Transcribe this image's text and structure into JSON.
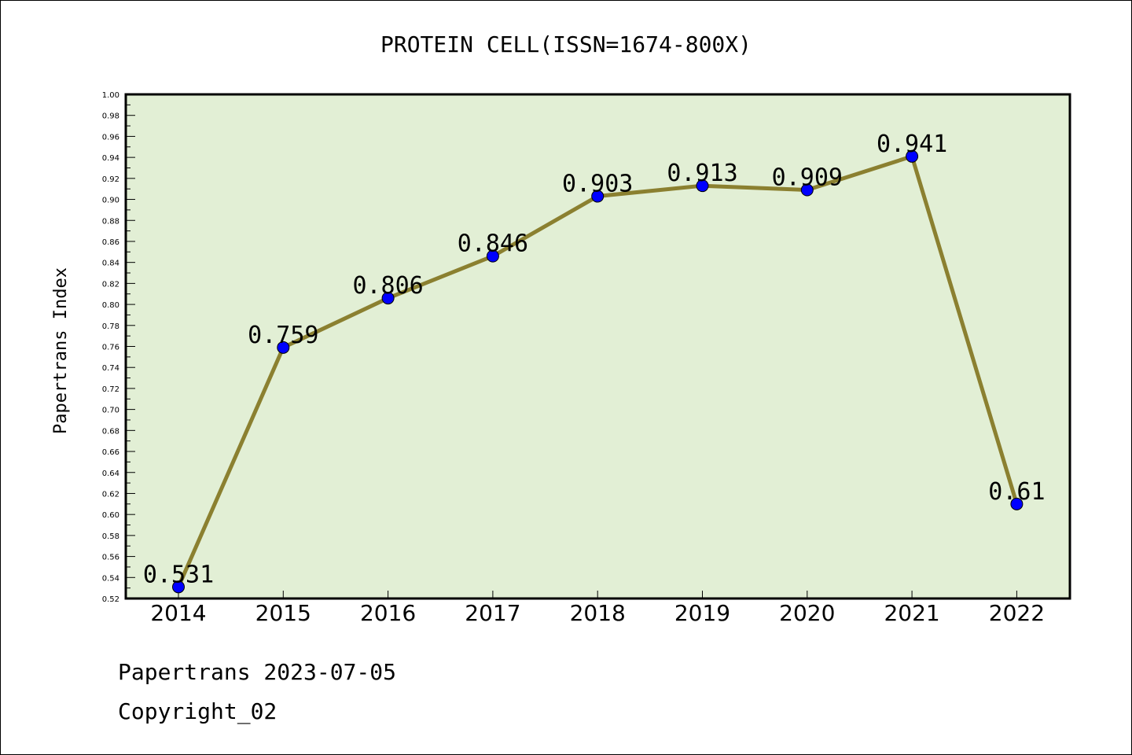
{
  "chart_data": {
    "type": "line",
    "title": "PROTEIN CELL(ISSN=1674-800X)",
    "ylabel": "Papertrans Index",
    "xlabel": "",
    "categories": [
      "2014",
      "2015",
      "2016",
      "2017",
      "2018",
      "2019",
      "2020",
      "2021",
      "2022"
    ],
    "values": [
      0.531,
      0.759,
      0.806,
      0.846,
      0.903,
      0.913,
      0.909,
      0.941,
      0.61
    ],
    "value_labels": [
      "0.531",
      "0.759",
      "0.806",
      "0.846",
      "0.903",
      "0.913",
      "0.909",
      "0.941",
      "0.61"
    ],
    "ylim": [
      0.52,
      1.0
    ],
    "ytick_labels": [
      "0.52",
      "0.54",
      "0.56",
      "0.58",
      "0.60",
      "0.62",
      "0.64",
      "0.66",
      "0.68",
      "0.70",
      "0.72",
      "0.74",
      "0.76",
      "0.78",
      "0.80",
      "0.82",
      "0.84",
      "0.86",
      "0.88",
      "0.90",
      "0.92",
      "0.94",
      "0.96",
      "0.98",
      "1.00"
    ],
    "grid": false,
    "legend": "none",
    "colors": {
      "plot_background": "#e2efd5",
      "line": "#8b8030",
      "marker": "#0000ff"
    }
  },
  "footer": {
    "source": "Papertrans 2023-07-05",
    "copyright": "Copyright_02"
  }
}
